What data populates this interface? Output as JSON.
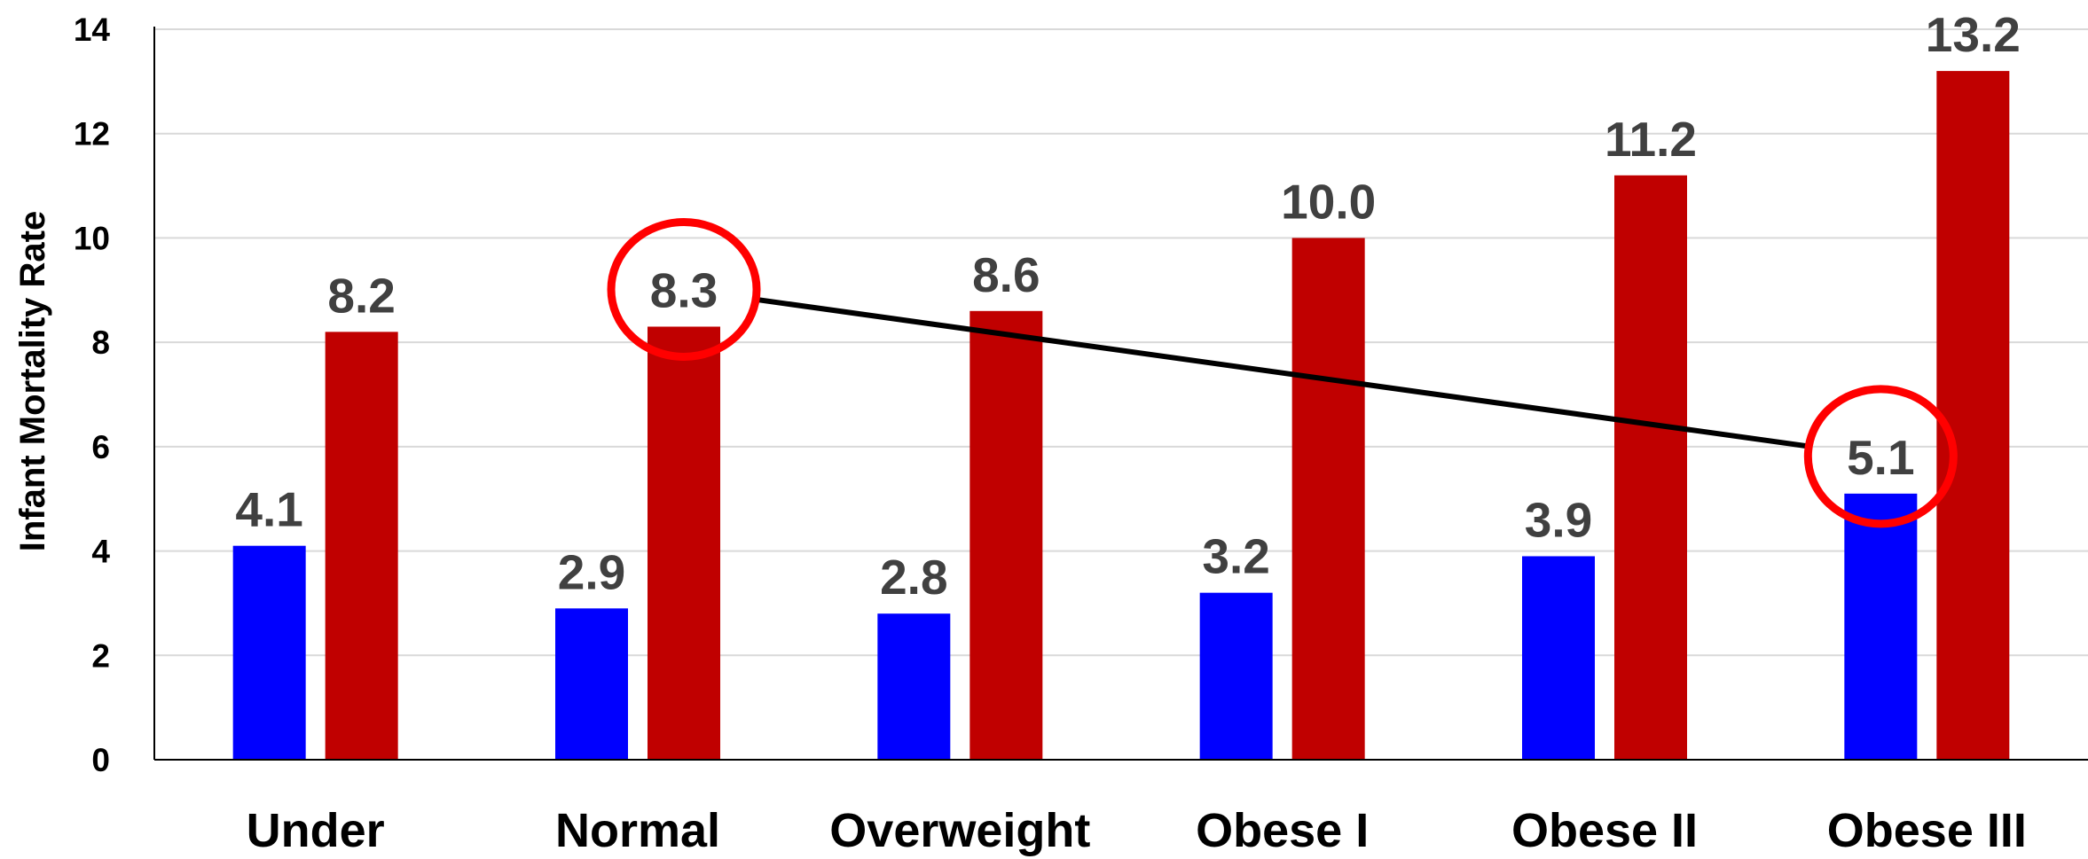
{
  "chart_data": {
    "type": "bar",
    "ylabel": "Infant Mortality Rate",
    "xlabel": "",
    "ylim": [
      0,
      14
    ],
    "yticks": [
      0,
      2,
      4,
      6,
      8,
      10,
      12,
      14
    ],
    "grid": true,
    "legend": "none",
    "categories": [
      "Under",
      "Normal",
      "Overweight",
      "Obese I",
      "Obese II",
      "Obese III"
    ],
    "series": [
      {
        "color": "#0000ff",
        "values": [
          4.1,
          2.9,
          2.8,
          3.2,
          3.9,
          5.1
        ],
        "labels": [
          "4.1",
          "2.9",
          "2.8",
          "3.2",
          "3.9",
          "5.1"
        ]
      },
      {
        "color": "#c00000",
        "values": [
          8.2,
          8.3,
          8.6,
          10.0,
          11.2,
          13.2
        ],
        "labels": [
          "8.2",
          "8.3",
          "8.6",
          "10.0",
          "11.2",
          "13.2"
        ]
      }
    ],
    "annotations": {
      "highlight_color": "#ff0000",
      "connector_color": "#000000",
      "circled": [
        {
          "category": "Normal",
          "series": 1,
          "value": 8.3
        },
        {
          "category": "Obese III",
          "series": 0,
          "value": 5.1
        }
      ]
    }
  }
}
